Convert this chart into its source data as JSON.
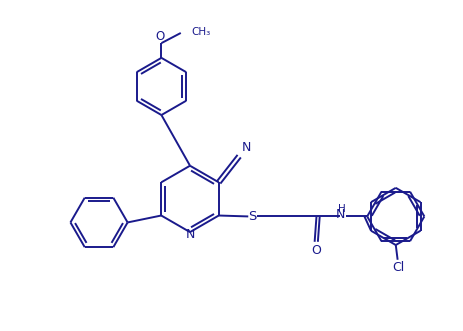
{
  "bg_color": "#ffffff",
  "line_color": "#1a1a8c",
  "line_width": 1.4,
  "figsize": [
    4.63,
    3.31
  ],
  "dpi": 100,
  "xlim": [
    0,
    10
  ],
  "ylim": [
    0,
    7.15
  ]
}
